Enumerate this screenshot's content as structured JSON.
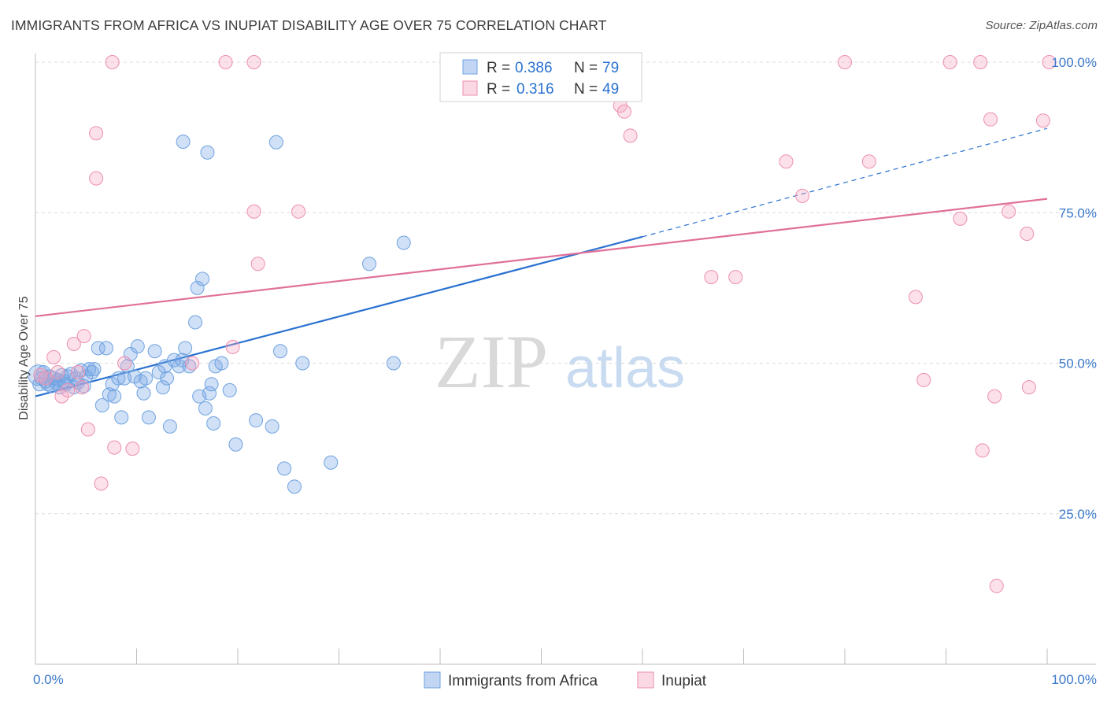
{
  "title": "IMMIGRANTS FROM AFRICA VS INUPIAT DISABILITY AGE OVER 75 CORRELATION CHART",
  "source": "Source: ZipAtlas.com",
  "watermark": {
    "zip": "ZIP",
    "atlas": "atlas"
  },
  "colors": {
    "blue": "#6fa3e0",
    "blue_fill": "rgba(120,165,230,0.35)",
    "blue_line": "#2a72d0",
    "pink": "#ec8fb0",
    "pink_fill": "rgba(245,170,195,0.35)",
    "pink_line": "#e0709a",
    "tick_text": "#3a78c9",
    "grid": "#dcdcdc"
  },
  "legend_top": {
    "rows": [
      {
        "r_label": "R = ",
        "r_value": "0.386",
        "n_label": "N = ",
        "n_value": "79",
        "color": "blue"
      },
      {
        "r_label": "R = ",
        "r_value": "0.316",
        "n_label": "N = ",
        "n_value": "49",
        "color": "pink"
      }
    ]
  },
  "legend_bottom": [
    {
      "label": "Immigrants from Africa",
      "color": "blue"
    },
    {
      "label": "Inupiat",
      "color": "pink"
    }
  ],
  "chart_data": {
    "type": "scatter",
    "title": "IMMIGRANTS FROM AFRICA VS INUPIAT DISABILITY AGE OVER 75 CORRELATION CHART",
    "xlabel": "",
    "ylabel": "Disability Age Over 75",
    "xlim": [
      0,
      100
    ],
    "ylim": [
      0,
      102
    ],
    "x_tick_labels": [
      {
        "value": 0,
        "label": "0.0%"
      },
      {
        "value": 100,
        "label": "100.0%"
      }
    ],
    "y_tick_labels": [
      {
        "value": 25,
        "label": "25.0%"
      },
      {
        "value": 50,
        "label": "50.0%"
      },
      {
        "value": 75,
        "label": "75.0%"
      },
      {
        "value": 100,
        "label": "100.0%"
      }
    ],
    "y_gridlines": [
      25,
      50,
      75,
      100
    ],
    "grid": true,
    "legend_position": "top-center",
    "series": [
      {
        "name": "Immigrants from Africa",
        "color": "blue",
        "R": 0.386,
        "N": 79,
        "trend": {
          "x": [
            0,
            60
          ],
          "y": [
            44.5,
            71.0
          ],
          "dashed_extension_to": {
            "x": 100,
            "y": 89.0
          }
        },
        "points": [
          [
            0.3,
            48
          ],
          [
            0.4,
            46.5
          ],
          [
            0.6,
            47.5
          ],
          [
            0.8,
            48.5
          ],
          [
            1.0,
            47
          ],
          [
            1.2,
            46.5
          ],
          [
            1.4,
            47.8
          ],
          [
            1.6,
            46.2
          ],
          [
            1.8,
            47.5
          ],
          [
            2.0,
            46.8
          ],
          [
            2.2,
            47.2
          ],
          [
            2.4,
            46
          ],
          [
            2.6,
            48
          ],
          [
            2.8,
            47
          ],
          [
            3.0,
            46.5
          ],
          [
            3.2,
            47.8
          ],
          [
            3.5,
            48.2
          ],
          [
            3.8,
            46
          ],
          [
            4.0,
            47.5
          ],
          [
            4.2,
            46.8
          ],
          [
            4.5,
            48.8
          ],
          [
            4.8,
            46.2
          ],
          [
            5.0,
            47.8
          ],
          [
            5.3,
            49
          ],
          [
            5.6,
            48.5
          ],
          [
            5.8,
            49
          ],
          [
            6.2,
            52.5
          ],
          [
            6.6,
            43
          ],
          [
            7.0,
            52.5
          ],
          [
            7.3,
            44.8
          ],
          [
            7.6,
            46.5
          ],
          [
            7.8,
            44.5
          ],
          [
            8.2,
            47.5
          ],
          [
            8.5,
            41
          ],
          [
            8.8,
            47.5
          ],
          [
            9.1,
            49.5
          ],
          [
            9.4,
            51.5
          ],
          [
            9.8,
            47.8
          ],
          [
            10.1,
            52.8
          ],
          [
            10.4,
            47
          ],
          [
            10.7,
            45
          ],
          [
            10.9,
            47.5
          ],
          [
            11.2,
            41
          ],
          [
            11.8,
            52
          ],
          [
            12.2,
            48.5
          ],
          [
            12.6,
            46
          ],
          [
            12.8,
            49.5
          ],
          [
            13.0,
            47.5
          ],
          [
            13.3,
            39.5
          ],
          [
            13.7,
            50.5
          ],
          [
            14.2,
            49.5
          ],
          [
            14.5,
            50.5
          ],
          [
            14.8,
            52.5
          ],
          [
            15.2,
            49.5
          ],
          [
            15.8,
            56.8
          ],
          [
            16.0,
            62.5
          ],
          [
            16.2,
            44.5
          ],
          [
            16.5,
            64
          ],
          [
            16.8,
            42.5
          ],
          [
            17.2,
            45
          ],
          [
            17.4,
            46.5
          ],
          [
            17.6,
            40
          ],
          [
            17.8,
            49.5
          ],
          [
            18.4,
            50
          ],
          [
            14.6,
            86.8
          ],
          [
            17.0,
            85
          ],
          [
            19.2,
            45.5
          ],
          [
            19.8,
            36.5
          ],
          [
            21.8,
            40.5
          ],
          [
            23.4,
            39.5
          ],
          [
            23.8,
            86.7
          ],
          [
            24.2,
            52
          ],
          [
            24.6,
            32.5
          ],
          [
            25.6,
            29.5
          ],
          [
            26.4,
            50
          ],
          [
            29.2,
            33.5
          ],
          [
            33.0,
            66.5
          ],
          [
            35.4,
            50
          ],
          [
            36.4,
            70
          ],
          [
            57.0,
            100
          ]
        ]
      },
      {
        "name": "Inupiat",
        "color": "pink",
        "R": 0.316,
        "N": 49,
        "trend": {
          "x": [
            0,
            100
          ],
          "y": [
            57.8,
            77.3
          ]
        },
        "points": [
          [
            0.5,
            48
          ],
          [
            1.0,
            47.5
          ],
          [
            1.8,
            51
          ],
          [
            2.2,
            48.5
          ],
          [
            2.6,
            44.5
          ],
          [
            3.2,
            45.5
          ],
          [
            3.8,
            53.2
          ],
          [
            4.2,
            48.5
          ],
          [
            4.6,
            46
          ],
          [
            4.8,
            54.5
          ],
          [
            5.2,
            39
          ],
          [
            6.0,
            88.2
          ],
          [
            6.0,
            80.7
          ],
          [
            6.5,
            30
          ],
          [
            7.6,
            100
          ],
          [
            7.8,
            36
          ],
          [
            8.8,
            50
          ],
          [
            9.6,
            35.8
          ],
          [
            18.8,
            100
          ],
          [
            21.6,
            75.2
          ],
          [
            21.6,
            100
          ],
          [
            22.0,
            66.5
          ],
          [
            26.0,
            75.2
          ],
          [
            15.5,
            50
          ],
          [
            19.5,
            52.7
          ],
          [
            55.8,
            95.5
          ],
          [
            57.8,
            92.8
          ],
          [
            58.2,
            91.8
          ],
          [
            58.8,
            87.8
          ],
          [
            66.8,
            64.3
          ],
          [
            69.2,
            64.3
          ],
          [
            74.2,
            83.5
          ],
          [
            75.8,
            77.8
          ],
          [
            80.0,
            100
          ],
          [
            82.4,
            83.5
          ],
          [
            87.0,
            61
          ],
          [
            87.8,
            47.2
          ],
          [
            90.4,
            100
          ],
          [
            91.4,
            74
          ],
          [
            93.4,
            100
          ],
          [
            93.6,
            35.5
          ],
          [
            94.4,
            90.5
          ],
          [
            94.8,
            44.5
          ],
          [
            95.0,
            13
          ],
          [
            96.2,
            75.2
          ],
          [
            98.0,
            71.5
          ],
          [
            98.2,
            46
          ],
          [
            99.6,
            90.3
          ],
          [
            100.2,
            100
          ]
        ]
      }
    ]
  }
}
